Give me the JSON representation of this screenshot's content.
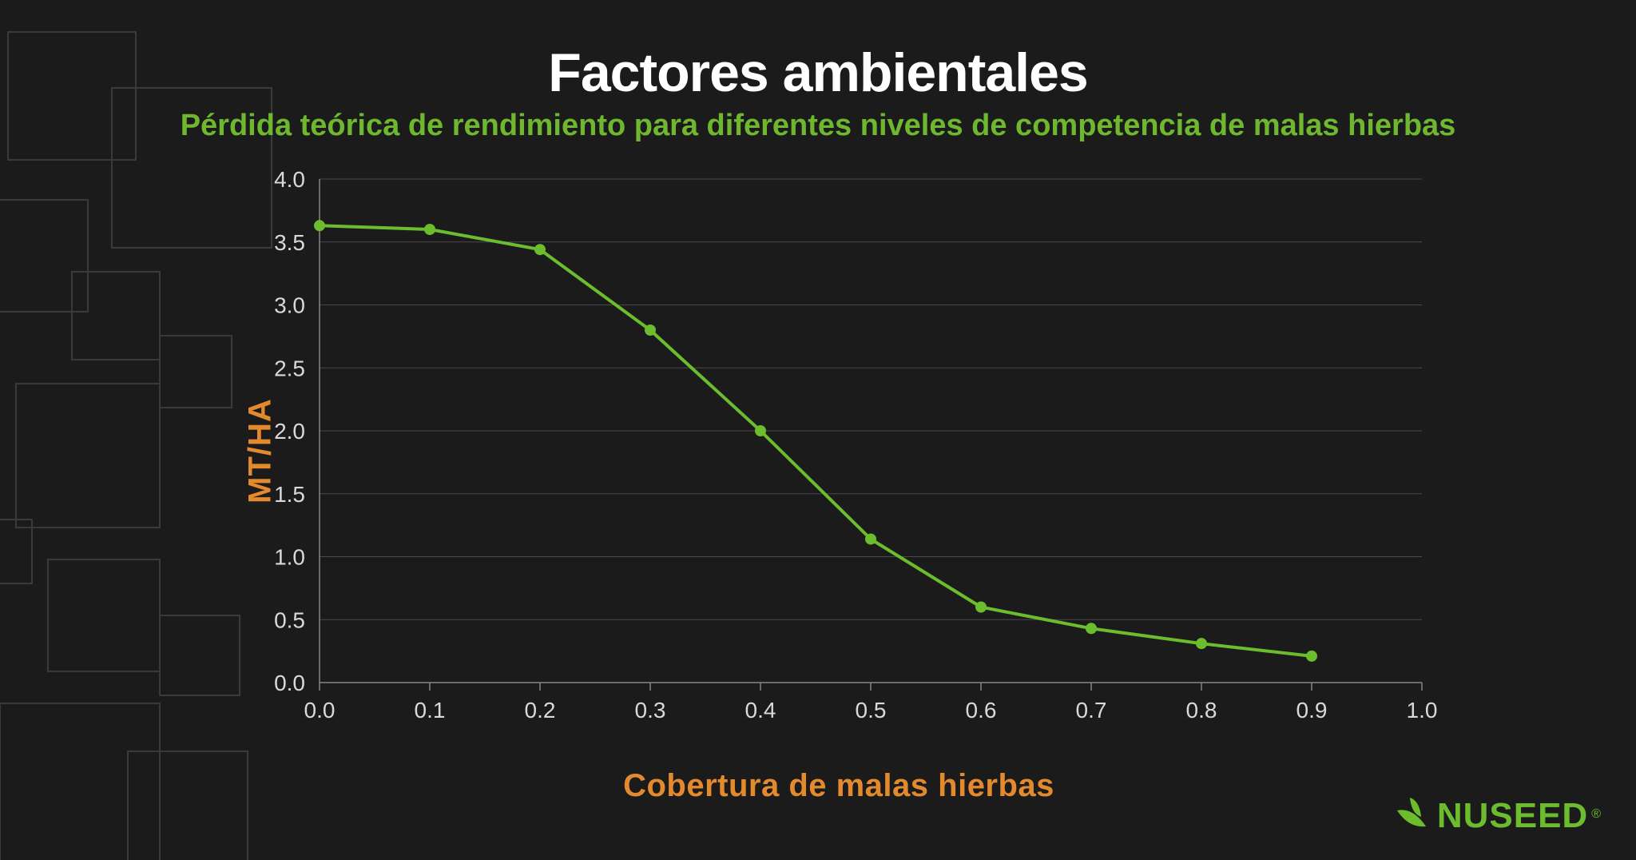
{
  "title": "Factores ambientales",
  "subtitle": "Pérdida teórica de rendimiento para diferentes niveles de competencia de malas hierbas",
  "ylabel": "MT/HA",
  "xlabel": "Cobertura de malas hierbas",
  "colors": {
    "background": "#1b1b1b",
    "title": "#ffffff",
    "subtitle": "#6fb72f",
    "axis_label": "#e38a2f",
    "tick_label": "#d9d9d9",
    "gridline": "#4a4a4a",
    "axis_line": "#888888",
    "line": "#6bbd2e",
    "marker": "#6bbd2e",
    "bg_square_stroke": "#3a3a3a",
    "logo": "#6bbd2e"
  },
  "chart": {
    "type": "line",
    "xlim": [
      0.0,
      1.0
    ],
    "ylim": [
      0.0,
      4.0
    ],
    "xtick_step": 0.1,
    "ytick_step": 0.5,
    "x_ticks": [
      "0.0",
      "0.1",
      "0.2",
      "0.3",
      "0.4",
      "0.5",
      "0.6",
      "0.7",
      "0.8",
      "0.9",
      "1.0"
    ],
    "y_ticks": [
      "0.0",
      "0.5",
      "1.0",
      "1.5",
      "2.0",
      "2.5",
      "3.0",
      "3.5",
      "4.0"
    ],
    "grid_horizontal": true,
    "grid_vertical": false,
    "line_width": 4,
    "marker_radius": 7,
    "tick_fontsize": 28,
    "label_fontsize": 40,
    "title_fontsize": 68,
    "subtitle_fontsize": 38,
    "series": [
      {
        "name": "yield",
        "x": [
          0.0,
          0.1,
          0.2,
          0.3,
          0.4,
          0.5,
          0.6,
          0.7,
          0.8,
          0.9
        ],
        "y": [
          3.63,
          3.6,
          3.44,
          2.8,
          2.0,
          1.14,
          0.6,
          0.43,
          0.31,
          0.21
        ]
      }
    ]
  },
  "logo_text": "NUSEED",
  "logo_reg": "®"
}
